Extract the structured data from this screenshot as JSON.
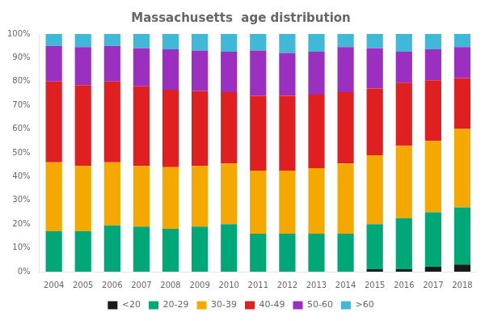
{
  "chart_data": {
    "type": "bar",
    "title": "Massachusetts  age distribution",
    "categories": [
      "2004",
      "2005",
      "2006",
      "2007",
      "2008",
      "2009",
      "2010",
      "2011",
      "2012",
      "2013",
      "2014",
      "2015",
      "2016",
      "2017",
      "2018"
    ],
    "series": [
      {
        "name": "<20",
        "color": "#1a1a1a",
        "values": [
          0.0,
          0.0,
          0.0,
          0.0,
          0.0,
          0.0,
          0.0,
          0.0,
          0.0,
          0.0,
          0.0,
          0.01,
          0.01,
          0.02,
          0.03
        ]
      },
      {
        "name": "20-29",
        "color": "#00a878",
        "values": [
          0.17,
          0.17,
          0.195,
          0.19,
          0.18,
          0.19,
          0.2,
          0.16,
          0.16,
          0.16,
          0.16,
          0.19,
          0.215,
          0.23,
          0.24
        ]
      },
      {
        "name": "30-39",
        "color": "#f5a800",
        "values": [
          0.29,
          0.275,
          0.265,
          0.255,
          0.26,
          0.255,
          0.255,
          0.265,
          0.265,
          0.275,
          0.295,
          0.29,
          0.305,
          0.3,
          0.33
        ]
      },
      {
        "name": "40-49",
        "color": "#e02020",
        "values": [
          0.34,
          0.34,
          0.34,
          0.335,
          0.325,
          0.315,
          0.3,
          0.315,
          0.315,
          0.31,
          0.3,
          0.28,
          0.265,
          0.255,
          0.215
        ]
      },
      {
        "name": "50-60",
        "color": "#9b30c0",
        "values": [
          0.15,
          0.16,
          0.15,
          0.16,
          0.17,
          0.17,
          0.17,
          0.19,
          0.18,
          0.18,
          0.19,
          0.17,
          0.13,
          0.13,
          0.13
        ]
      },
      {
        "name": ">60",
        "color": "#40b8d8",
        "values": [
          0.05,
          0.055,
          0.05,
          0.06,
          0.065,
          0.07,
          0.075,
          0.07,
          0.08,
          0.075,
          0.055,
          0.06,
          0.075,
          0.065,
          0.055
        ]
      }
    ],
    "stacked": true,
    "ylim": [
      0,
      1.0
    ],
    "yticks": [
      {
        "value": 0.0,
        "label": "0%"
      },
      {
        "value": 0.1,
        "label": "10%"
      },
      {
        "value": 0.2,
        "label": "20%"
      },
      {
        "value": 0.3,
        "label": "30%"
      },
      {
        "value": 0.4,
        "label": "40%"
      },
      {
        "value": 0.5,
        "label": "50%"
      },
      {
        "value": 0.6,
        "label": "60%"
      },
      {
        "value": 0.7,
        "label": "70%"
      },
      {
        "value": 0.8,
        "label": "80%"
      },
      {
        "value": 0.9,
        "label": "90%"
      },
      {
        "value": 1.0,
        "label": "100%"
      }
    ],
    "grid": false,
    "legend": "bottom"
  }
}
